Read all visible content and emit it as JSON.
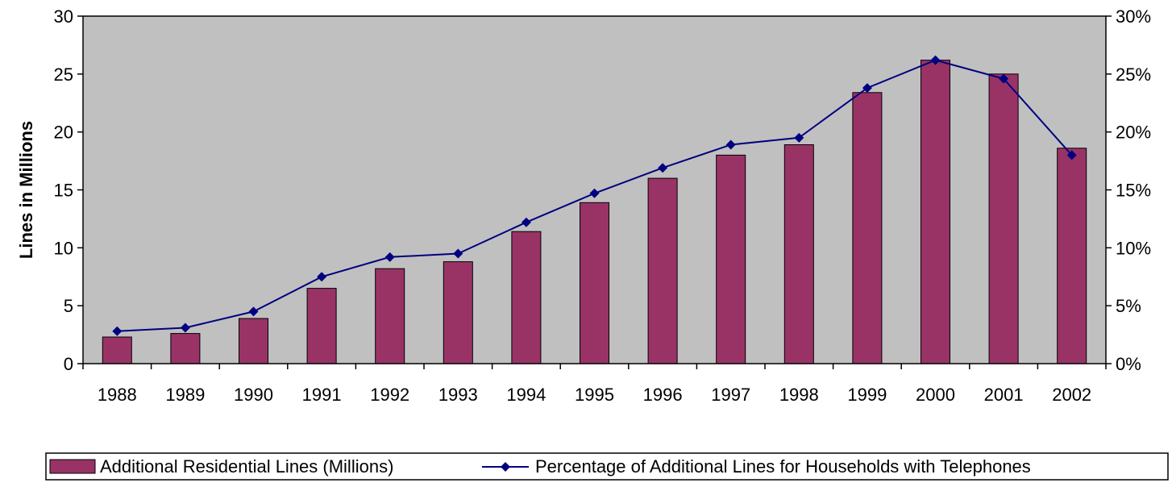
{
  "chart_data": {
    "type": "bar+line",
    "categories": [
      "1988",
      "1989",
      "1990",
      "1991",
      "1992",
      "1993",
      "1994",
      "1995",
      "1996",
      "1997",
      "1998",
      "1999",
      "2000",
      "2001",
      "2002"
    ],
    "series": [
      {
        "name": "Additional Residential Lines (Millions)",
        "type": "bar",
        "axis": "left",
        "color": "#993366",
        "values": [
          2.3,
          2.6,
          3.9,
          6.5,
          8.2,
          8.8,
          11.4,
          13.9,
          16.0,
          18.0,
          18.9,
          23.4,
          26.2,
          25.0,
          18.6
        ]
      },
      {
        "name": "Percentage of Additional Lines for Households with Telephones",
        "type": "line",
        "axis": "right",
        "color": "#000080",
        "values": [
          2.8,
          3.1,
          4.5,
          7.5,
          9.2,
          9.5,
          12.2,
          14.7,
          16.9,
          18.9,
          19.5,
          23.8,
          26.2,
          24.6,
          18.0
        ]
      }
    ],
    "ylabel": "Lines in Millions",
    "ylim": [
      0,
      30
    ],
    "yticks": [
      "0",
      "5",
      "10",
      "15",
      "20",
      "25",
      "30"
    ],
    "y2lim": [
      0,
      30
    ],
    "y2ticks": [
      "0%",
      "5%",
      "10%",
      "15%",
      "20%",
      "25%",
      "30%"
    ],
    "plot_background": "#c0c0c0",
    "grid": false,
    "legend_position": "bottom"
  }
}
